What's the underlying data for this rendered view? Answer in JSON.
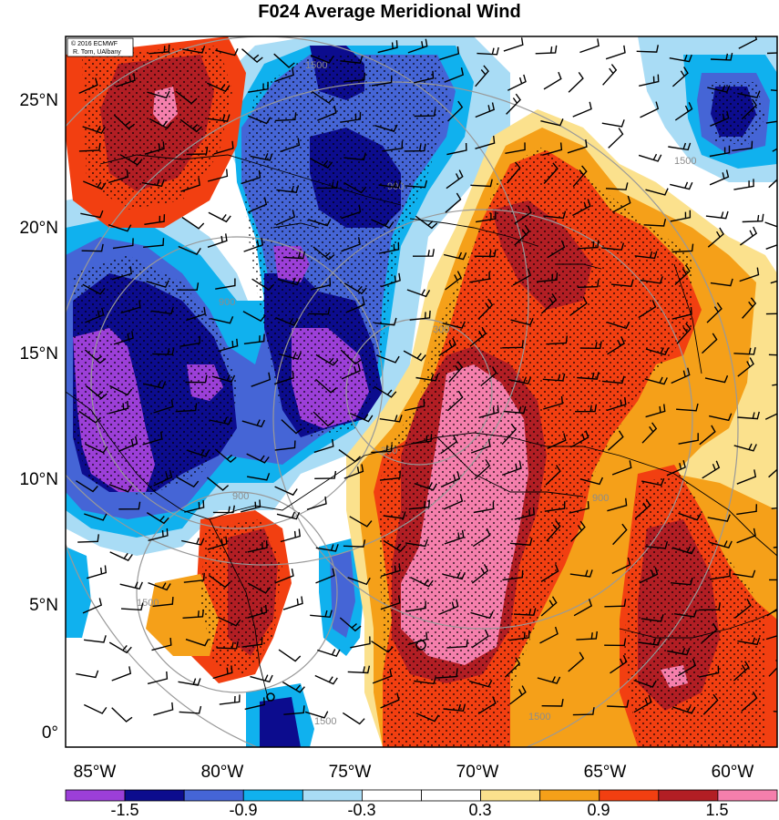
{
  "title": "F024 Average Meridional Wind",
  "credit": {
    "line1": "© 2016 ECMWF",
    "line2": "R. Torn, UAlbany"
  },
  "lat_labels": [
    "25°N",
    "20°N",
    "15°N",
    "10°N",
    "5°N",
    "0°"
  ],
  "lon_labels": [
    "85°W",
    "80°W",
    "75°W",
    "70°W",
    "65°W",
    "60°W"
  ],
  "colorbar": {
    "colors": [
      "#9c3fd8",
      "#0c0c8e",
      "#4565d6",
      "#10b1ee",
      "#a9dcf5",
      "#ffffff",
      "#ffffff",
      "#fbe18d",
      "#f5a019",
      "#f23f11",
      "#b21e24",
      "#f57fac"
    ],
    "labels": [
      "-1.5",
      "-0.9",
      "-0.3",
      "0.3",
      "0.9",
      "1.5"
    ]
  },
  "ring_labels": [
    "300",
    "900",
    "1500"
  ],
  "palette": {
    "purple": "#9c3fd8",
    "navy": "#0c0c8e",
    "blue": "#4565d6",
    "cyan": "#10b1ee",
    "lightblue": "#a9dcf5",
    "pale_yellow": "#fbe18d",
    "orange": "#f5a019",
    "red_orange": "#f23f11",
    "dark_red": "#b21e24",
    "pink": "#f57fac"
  }
}
